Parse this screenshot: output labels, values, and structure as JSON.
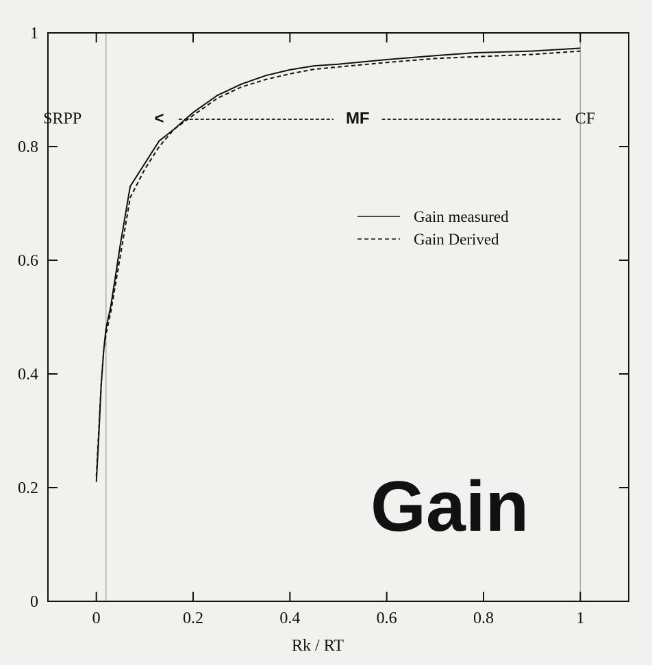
{
  "chart_data": {
    "type": "line",
    "title": "Gain",
    "xlabel": "Rk / RT",
    "ylabel": "",
    "xlim": [
      -0.1,
      1.1
    ],
    "ylim": [
      0,
      1
    ],
    "x_ticks": [
      0,
      0.2,
      0.4,
      0.6,
      0.8,
      1
    ],
    "x_tick_labels": [
      "0",
      "0.2",
      "0.4",
      "0.6",
      "0.8",
      "1"
    ],
    "y_ticks": [
      0,
      0.2,
      0.4,
      0.6,
      0.8,
      1
    ],
    "y_tick_labels": [
      "0",
      "0.2",
      "0.4",
      "0.6",
      "0.8",
      "1"
    ],
    "grid": false,
    "legend_position": "right",
    "reference_lines_x": [
      0.02,
      1
    ],
    "series": [
      {
        "name": "Gain measured",
        "style": "solid",
        "x": [
          0.0,
          0.005,
          0.01,
          0.015,
          0.02,
          0.03,
          0.05,
          0.07,
          0.1,
          0.13,
          0.16,
          0.2,
          0.25,
          0.3,
          0.35,
          0.4,
          0.45,
          0.5,
          0.6,
          0.7,
          0.78,
          0.9,
          1.0
        ],
        "y": [
          0.21,
          0.29,
          0.38,
          0.44,
          0.48,
          0.52,
          0.63,
          0.73,
          0.77,
          0.81,
          0.83,
          0.86,
          0.89,
          0.91,
          0.925,
          0.935,
          0.942,
          0.945,
          0.953,
          0.96,
          0.965,
          0.968,
          0.973
        ]
      },
      {
        "name": "Gain Derived",
        "style": "dashed",
        "x": [
          0.0,
          0.005,
          0.01,
          0.015,
          0.02,
          0.03,
          0.05,
          0.07,
          0.1,
          0.13,
          0.16,
          0.2,
          0.25,
          0.3,
          0.35,
          0.4,
          0.45,
          0.5,
          0.6,
          0.7,
          0.78,
          0.9,
          1.0
        ],
        "y": [
          0.22,
          0.3,
          0.38,
          0.44,
          0.47,
          0.51,
          0.61,
          0.71,
          0.76,
          0.8,
          0.83,
          0.855,
          0.885,
          0.905,
          0.918,
          0.928,
          0.936,
          0.94,
          0.948,
          0.955,
          0.958,
          0.962,
          0.968
        ]
      }
    ],
    "annotations": [
      {
        "text": "SRPP",
        "x": -0.07,
        "y": 0.85,
        "style": "serif"
      },
      {
        "text": "<",
        "x": 0.13,
        "y": 0.85,
        "style": "sans"
      },
      {
        "text": "MF",
        "x": 0.54,
        "y": 0.85,
        "style": "sans"
      },
      {
        "text": "CF",
        "x": 1.01,
        "y": 0.85,
        "style": "serif"
      }
    ],
    "arrow_line": {
      "from": 0.17,
      "to": 0.96,
      "y": 0.848,
      "gap_start": 0.49,
      "gap_end": 0.59
    },
    "big_label": {
      "text": "Gain",
      "x": 0.73,
      "y": 0.17
    }
  }
}
